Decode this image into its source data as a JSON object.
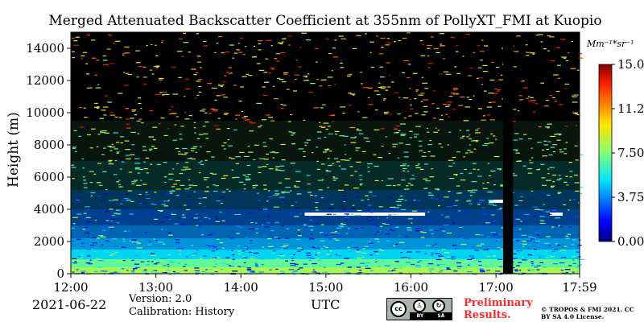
{
  "title": "Merged Attenuated Backscatter Coefficient at 355nm of PollyXT_FMI at Kuopio",
  "date": "2021-06-22",
  "version": "Version: 2.0",
  "calibration": "Calibration: History",
  "preliminary": "Preliminary Results.",
  "copyright": "© TROPOS & FMI 2021. CC BY SA 4.0 License.",
  "license_logo": {
    "band": [
      "BY",
      "SA"
    ]
  },
  "chart_data": {
    "type": "heatmap",
    "title": "Merged Attenuated Backscatter Coefficient at 355nm of PollyXT_FMI at Kuopio",
    "xlabel": "UTC",
    "ylabel": "Height (m)",
    "x_range": [
      "12:00",
      "17:59"
    ],
    "x_ticks": [
      "12:00",
      "13:00",
      "14:00",
      "15:00",
      "16:00",
      "17:00",
      "17:59"
    ],
    "y_range": [
      0,
      15000
    ],
    "y_ticks": [
      0,
      2000,
      4000,
      6000,
      8000,
      10000,
      12000,
      14000
    ],
    "y_tick_labels": [
      "0",
      "2000",
      "4000",
      "6000",
      "8000",
      "10000",
      "12000",
      "14000"
    ],
    "colorbar": {
      "unit": "Mm⁻¹*sr⁻¹",
      "min": 0,
      "max": 15,
      "ticks": [
        0,
        3.75,
        7.5,
        11.25,
        15
      ],
      "tick_labels": [
        "0.00",
        "3.75",
        "7.50",
        "11.25",
        "15.00"
      ],
      "colormap": "jet"
    },
    "missing_data_interval_utc": [
      "17:05",
      "17:12"
    ],
    "cloud_layers": [
      {
        "start": "14:45",
        "end": "16:10",
        "height_m": 3700
      },
      {
        "start": "16:55",
        "end": "17:05",
        "height_m": 4500
      },
      {
        "start": "17:38",
        "end": "17:47",
        "height_m": 3700
      }
    ],
    "colors": {
      "background": "#000000",
      "missing": "#000000",
      "cloud": "#ffffff"
    }
  }
}
